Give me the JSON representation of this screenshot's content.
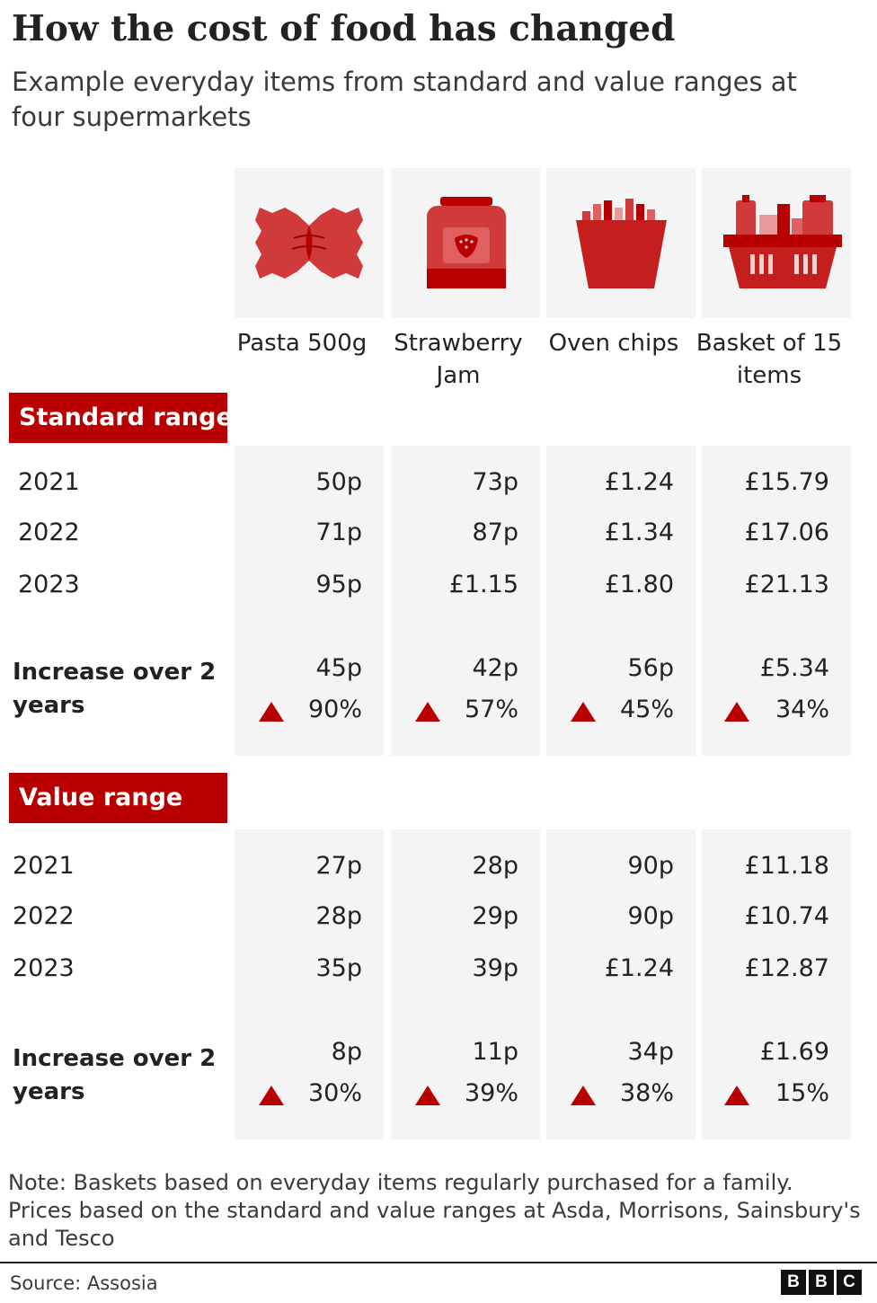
{
  "title": "How the cost of food has changed",
  "subtitle": "Example everyday items from standard and value ranges at four supermarkets",
  "columns": [
    {
      "label": "Pasta 500g",
      "icon": "pasta-icon"
    },
    {
      "label": "Strawberry Jam",
      "icon": "jam-jar-icon"
    },
    {
      "label": "Oven chips",
      "icon": "chips-icon"
    },
    {
      "label": "Basket of 15 items",
      "icon": "shopping-basket-icon"
    }
  ],
  "colors": {
    "accent": "#b80000",
    "column_bg": "#f4f4f4",
    "text": "#222222"
  },
  "standard": {
    "label": "Standard range",
    "years": [
      "2021",
      "2022",
      "2023"
    ],
    "increase_label": "Increase over 2 years",
    "rows": [
      [
        "50p",
        "73p",
        "£1.24",
        "£15.79"
      ],
      [
        "71p",
        "87p",
        "£1.34",
        "£17.06"
      ],
      [
        "95p",
        "£1.15",
        "£1.80",
        "£21.13"
      ]
    ],
    "increase": [
      "45p",
      "42p",
      "56p",
      "£5.34"
    ],
    "increase_pct": [
      "90%",
      "57%",
      "45%",
      "34%"
    ]
  },
  "value": {
    "label": "Value range",
    "years": [
      "2021",
      "2022",
      "2023"
    ],
    "increase_label": "Increase over 2 years",
    "rows": [
      [
        "27p",
        "28p",
        "90p",
        "£11.18"
      ],
      [
        "28p",
        "29p",
        "90p",
        "£10.74"
      ],
      [
        "35p",
        "39p",
        "£1.24",
        "£12.87"
      ]
    ],
    "increase": [
      "8p",
      "11p",
      "34p",
      "£1.69"
    ],
    "increase_pct": [
      "30%",
      "39%",
      "38%",
      "15%"
    ]
  },
  "note": "Note: Baskets based on everyday items regularly purchased for a family. Prices based on the standard and value ranges at Asda, Morrisons, Sainsbury's and Tesco",
  "source": "Source: Assosia",
  "logo": [
    "B",
    "B",
    "C"
  ],
  "chart_data": {
    "type": "table",
    "title": "How the cost of food has changed",
    "subtitle": "Example everyday items from standard and value ranges at four supermarkets",
    "columns": [
      "Pasta 500g",
      "Strawberry Jam",
      "Oven chips",
      "Basket of 15 items"
    ],
    "sections": [
      {
        "name": "Standard range",
        "rows": [
          {
            "year": "2021",
            "values": [
              "50p",
              "73p",
              "£1.24",
              "£15.79"
            ]
          },
          {
            "year": "2022",
            "values": [
              "71p",
              "87p",
              "£1.34",
              "£17.06"
            ]
          },
          {
            "year": "2023",
            "values": [
              "95p",
              "£1.15",
              "£1.80",
              "£21.13"
            ]
          }
        ],
        "increase": [
          "45p",
          "42p",
          "56p",
          "£5.34"
        ],
        "increase_pct": [
          "90%",
          "57%",
          "45%",
          "34%"
        ]
      },
      {
        "name": "Value range",
        "rows": [
          {
            "year": "2021",
            "values": [
              "27p",
              "28p",
              "90p",
              "£11.18"
            ]
          },
          {
            "year": "2022",
            "values": [
              "28p",
              "29p",
              "90p",
              "£10.74"
            ]
          },
          {
            "year": "2023",
            "values": [
              "35p",
              "39p",
              "£1.24",
              "£12.87"
            ]
          }
        ],
        "increase": [
          "8p",
          "11p",
          "34p",
          "£1.69"
        ],
        "increase_pct": [
          "30%",
          "39%",
          "38%",
          "15%"
        ]
      }
    ]
  }
}
